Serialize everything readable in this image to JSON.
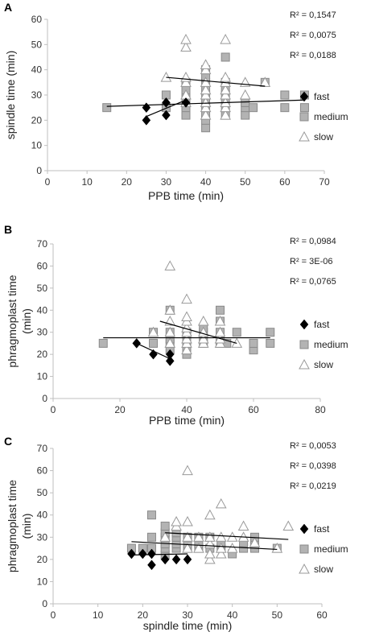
{
  "chart_data": [
    {
      "type": "scatter",
      "panel": "A",
      "xlabel": "PPB time (min)",
      "ylabel": "spindle time (min)",
      "xlim": [
        0,
        70
      ],
      "ylim": [
        0,
        60
      ],
      "xticks": [
        0,
        10,
        20,
        30,
        40,
        50,
        60,
        70
      ],
      "yticks": [
        0,
        10,
        20,
        30,
        40,
        50,
        60
      ],
      "r2": [
        "R² = 0,1547",
        "R² = 0,0075",
        "R² = 0,0188"
      ],
      "series": [
        {
          "name": "fast",
          "marker": "diamond",
          "color": "#000000",
          "points": [
            [
              25,
              20
            ],
            [
              25,
              25
            ],
            [
              30,
              22
            ],
            [
              30,
              27
            ],
            [
              35,
              27
            ]
          ],
          "trend": [
            [
              25,
              21.5
            ],
            [
              35,
              28
            ]
          ]
        },
        {
          "name": "medium",
          "marker": "square",
          "color": "#b0b0b0",
          "points": [
            [
              15,
              25
            ],
            [
              30,
              25
            ],
            [
              30,
              30
            ],
            [
              35,
              22
            ],
            [
              35,
              25
            ],
            [
              35,
              27
            ],
            [
              35,
              30
            ],
            [
              35,
              32
            ],
            [
              35,
              35
            ],
            [
              40,
              17
            ],
            [
              40,
              20
            ],
            [
              40,
              22
            ],
            [
              40,
              25
            ],
            [
              40,
              27
            ],
            [
              40,
              30
            ],
            [
              40,
              32
            ],
            [
              40,
              35
            ],
            [
              40,
              37
            ],
            [
              40,
              40
            ],
            [
              45,
              22
            ],
            [
              45,
              25
            ],
            [
              45,
              27
            ],
            [
              45,
              30
            ],
            [
              45,
              32
            ],
            [
              45,
              35
            ],
            [
              45,
              45
            ],
            [
              50,
              22
            ],
            [
              50,
              25
            ],
            [
              50,
              27
            ],
            [
              52,
              25
            ],
            [
              55,
              35
            ],
            [
              60,
              25
            ],
            [
              60,
              30
            ],
            [
              65,
              25
            ],
            [
              65,
              30
            ]
          ],
          "trend": [
            [
              15,
              25.5
            ],
            [
              65,
              28
            ]
          ]
        },
        {
          "name": "slow",
          "marker": "triangle",
          "color": "#ffffff",
          "points": [
            [
              30,
              37
            ],
            [
              35,
              27
            ],
            [
              35,
              30
            ],
            [
              35,
              35
            ],
            [
              35,
              37
            ],
            [
              35,
              49
            ],
            [
              35,
              52
            ],
            [
              40,
              22
            ],
            [
              40,
              25
            ],
            [
              40,
              27
            ],
            [
              40,
              30
            ],
            [
              40,
              32
            ],
            [
              40,
              35
            ],
            [
              40,
              40
            ],
            [
              40,
              42
            ],
            [
              45,
              22
            ],
            [
              45,
              25
            ],
            [
              45,
              27
            ],
            [
              45,
              30
            ],
            [
              45,
              32
            ],
            [
              45,
              35
            ],
            [
              45,
              37
            ],
            [
              45,
              52
            ],
            [
              50,
              30
            ],
            [
              50,
              35
            ],
            [
              55,
              35
            ]
          ],
          "trend": [
            [
              30,
              37
            ],
            [
              55,
              33.5
            ]
          ]
        }
      ]
    },
    {
      "type": "scatter",
      "panel": "B",
      "xlabel": "PPB time (min)",
      "ylabel": "phragmoplast time\n(min)",
      "xlim": [
        0,
        80
      ],
      "ylim": [
        0,
        70
      ],
      "xticks": [
        0,
        20,
        40,
        60,
        80
      ],
      "yticks": [
        0,
        10,
        20,
        30,
        40,
        50,
        60,
        70
      ],
      "r2": [
        "R² = 0,0984",
        "R² = 3E-06",
        "R² = 0,0765"
      ],
      "series": [
        {
          "name": "fast",
          "marker": "diamond",
          "color": "#000000",
          "points": [
            [
              25,
              25
            ],
            [
              30,
              20
            ],
            [
              35,
              17
            ],
            [
              35,
              20
            ]
          ],
          "trend": [
            [
              25,
              25
            ],
            [
              35,
              18
            ]
          ]
        },
        {
          "name": "medium",
          "marker": "square",
          "color": "#b0b0b0",
          "points": [
            [
              15,
              25
            ],
            [
              30,
              25
            ],
            [
              30,
              30
            ],
            [
              35,
              22
            ],
            [
              35,
              25
            ],
            [
              35,
              27
            ],
            [
              35,
              30
            ],
            [
              35,
              40
            ],
            [
              40,
              20
            ],
            [
              40,
              22
            ],
            [
              40,
              25
            ],
            [
              40,
              27
            ],
            [
              40,
              30
            ],
            [
              45,
              25
            ],
            [
              45,
              27
            ],
            [
              45,
              30
            ],
            [
              45,
              32
            ],
            [
              50,
              25
            ],
            [
              50,
              27
            ],
            [
              50,
              30
            ],
            [
              50,
              35
            ],
            [
              50,
              40
            ],
            [
              52,
              25
            ],
            [
              55,
              30
            ],
            [
              60,
              22
            ],
            [
              60,
              25
            ],
            [
              65,
              25
            ],
            [
              65,
              30
            ]
          ],
          "trend": [
            [
              15,
              27.5
            ],
            [
              65,
              27.5
            ]
          ]
        },
        {
          "name": "slow",
          "marker": "triangle",
          "color": "#ffffff",
          "points": [
            [
              30,
              30
            ],
            [
              35,
              25
            ],
            [
              35,
              30
            ],
            [
              35,
              35
            ],
            [
              35,
              40
            ],
            [
              35,
              60
            ],
            [
              40,
              22
            ],
            [
              40,
              25
            ],
            [
              40,
              27
            ],
            [
              40,
              30
            ],
            [
              40,
              32
            ],
            [
              40,
              35
            ],
            [
              40,
              37
            ],
            [
              40,
              45
            ],
            [
              45,
              25
            ],
            [
              45,
              27
            ],
            [
              45,
              30
            ],
            [
              45,
              35
            ],
            [
              50,
              25
            ],
            [
              50,
              27
            ],
            [
              50,
              30
            ],
            [
              50,
              35
            ],
            [
              55,
              25
            ]
          ],
          "trend": [
            [
              32,
              35
            ],
            [
              55,
              25
            ]
          ]
        }
      ]
    },
    {
      "type": "scatter",
      "panel": "C",
      "xlabel": "spindle time (min)",
      "ylabel": "phragmoplast time\n(min)",
      "xlim": [
        0,
        60
      ],
      "ylim": [
        0,
        70
      ],
      "xticks": [
        0,
        10,
        20,
        30,
        40,
        50,
        60
      ],
      "yticks": [
        0,
        10,
        20,
        30,
        40,
        50,
        60,
        70
      ],
      "r2": [
        "R² = 0,0053",
        "R² = 0,0398",
        "R² = 0,0219"
      ],
      "series": [
        {
          "name": "fast",
          "marker": "diamond",
          "color": "#000000",
          "points": [
            [
              17.5,
              22.5
            ],
            [
              20,
              22.5
            ],
            [
              22,
              22.5
            ],
            [
              22,
              17.5
            ],
            [
              25,
              20
            ],
            [
              27.5,
              20
            ],
            [
              30,
              20
            ]
          ],
          "trend": [
            [
              17.5,
              22
            ],
            [
              30,
              22.5
            ]
          ]
        },
        {
          "name": "medium",
          "marker": "square",
          "color": "#b0b0b0",
          "points": [
            [
              17.5,
              25
            ],
            [
              20,
              25
            ],
            [
              22,
              25
            ],
            [
              22,
              30
            ],
            [
              22,
              40
            ],
            [
              25,
              22
            ],
            [
              25,
              25
            ],
            [
              25,
              27
            ],
            [
              25,
              30
            ],
            [
              25,
              32
            ],
            [
              25,
              35
            ],
            [
              27.5,
              25
            ],
            [
              27.5,
              27
            ],
            [
              27.5,
              30
            ],
            [
              27.5,
              32
            ],
            [
              30,
              25
            ],
            [
              30,
              27
            ],
            [
              30,
              30
            ],
            [
              32.5,
              25
            ],
            [
              32.5,
              27
            ],
            [
              32.5,
              30
            ],
            [
              35,
              25
            ],
            [
              35,
              30
            ],
            [
              37.5,
              25
            ],
            [
              37.5,
              27
            ],
            [
              40,
              22.5
            ],
            [
              42.5,
              25
            ],
            [
              42.5,
              27.5
            ],
            [
              45,
              25
            ],
            [
              45,
              27.5
            ],
            [
              45,
              30
            ],
            [
              50,
              25
            ]
          ],
          "trend": [
            [
              17.5,
              28
            ],
            [
              50,
              24.5
            ]
          ]
        },
        {
          "name": "slow",
          "marker": "triangle",
          "color": "#ffffff",
          "points": [
            [
              25,
              30
            ],
            [
              27.5,
              35
            ],
            [
              27.5,
              37
            ],
            [
              30,
              25
            ],
            [
              30,
              30
            ],
            [
              30,
              37
            ],
            [
              30,
              60
            ],
            [
              32.5,
              25
            ],
            [
              32.5,
              30
            ],
            [
              35,
              20
            ],
            [
              35,
              22.5
            ],
            [
              35,
              27
            ],
            [
              35,
              30
            ],
            [
              35,
              40
            ],
            [
              37.5,
              22.5
            ],
            [
              37.5,
              25
            ],
            [
              37.5,
              30
            ],
            [
              37.5,
              45
            ],
            [
              40,
              25
            ],
            [
              40,
              30
            ],
            [
              42.5,
              30
            ],
            [
              42.5,
              35
            ],
            [
              45,
              27.5
            ],
            [
              50,
              25
            ],
            [
              52.5,
              35
            ]
          ],
          "trend": [
            [
              25,
              32
            ],
            [
              52.5,
              29
            ]
          ]
        }
      ]
    }
  ]
}
